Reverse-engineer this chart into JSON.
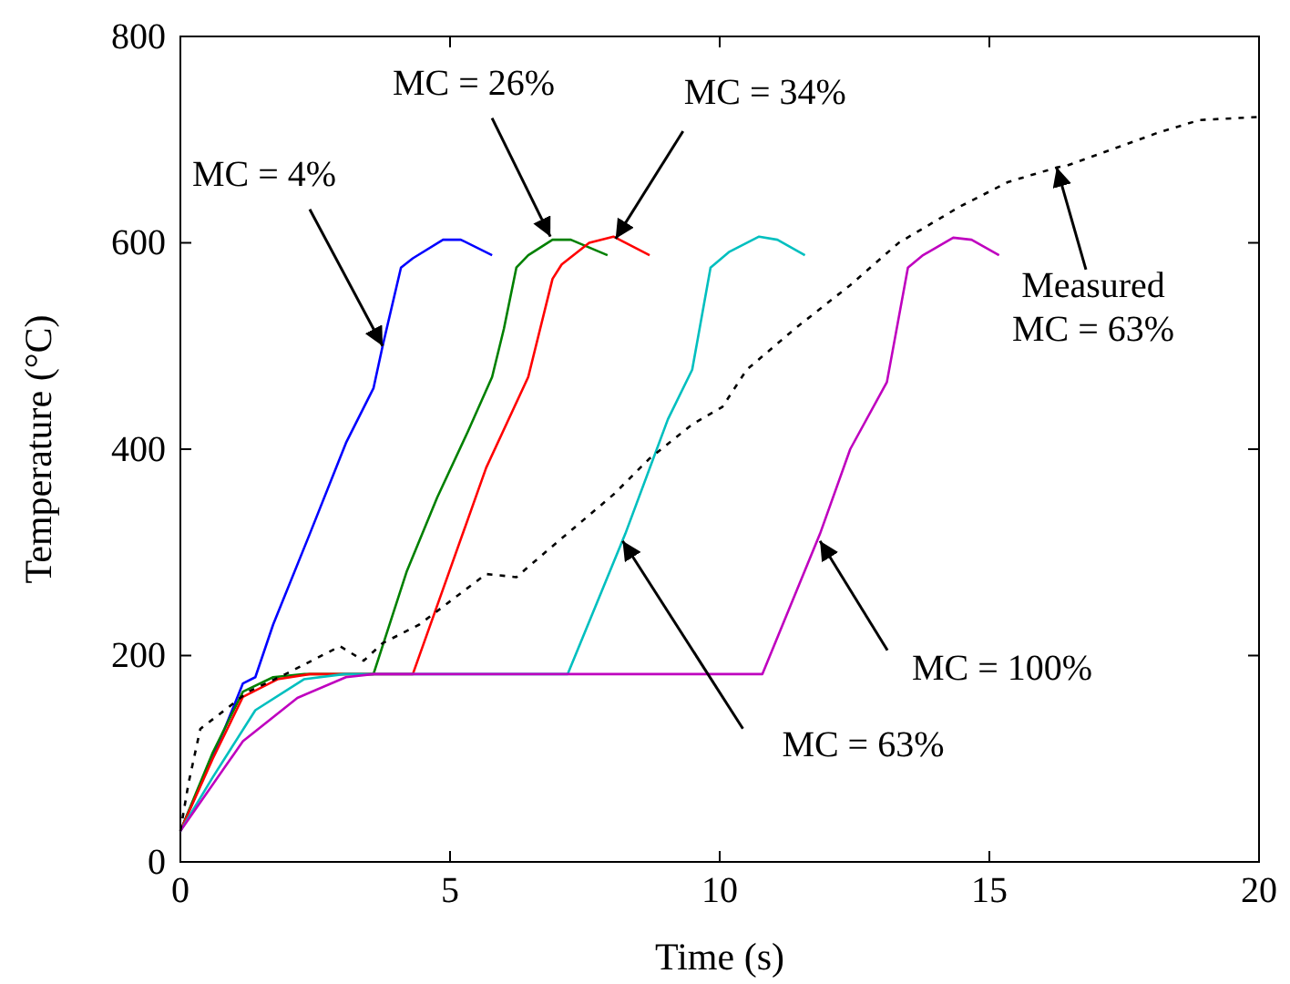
{
  "chart_data": {
    "type": "line",
    "xlabel": "Time (s)",
    "ylabel": "Temperature (°C)",
    "xlim": [
      0,
      20
    ],
    "ylim": [
      0,
      800
    ],
    "xticks": [
      0,
      5,
      10,
      15,
      20
    ],
    "yticks": [
      0,
      200,
      400,
      600,
      800
    ],
    "grid": false,
    "series": [
      {
        "color": "#0000ff",
        "line_style": "solid",
        "x": [
          0,
          0.82,
          1.16,
          1.39,
          1.72,
          2.4,
          3.07,
          3.58,
          3.75,
          4.09,
          4.31,
          4.87,
          5.2,
          5.78
        ],
        "values": [
          30,
          129,
          173,
          179,
          230,
          318,
          406,
          459,
          500,
          576,
          585,
          603,
          603,
          588
        ]
      },
      {
        "color": "#008000",
        "line_style": "solid",
        "x": [
          0,
          0.6,
          1.16,
          1.72,
          2.3,
          3.58,
          4.2,
          4.76,
          5.33,
          5.78,
          6.0,
          6.23,
          6.45,
          6.9,
          7.24,
          7.92
        ],
        "values": [
          30,
          106,
          165,
          179,
          182,
          182,
          282,
          353,
          417,
          470,
          517,
          576,
          588,
          603,
          603,
          588
        ]
      },
      {
        "color": "#ff0000",
        "line_style": "solid",
        "x": [
          0,
          0.6,
          1.16,
          1.8,
          2.4,
          4.31,
          4.99,
          5.67,
          6.45,
          6.9,
          7.07,
          7.58,
          8.03,
          8.7
        ],
        "values": [
          30,
          100,
          160,
          177,
          182,
          182,
          282,
          382,
          470,
          565,
          579,
          600,
          606,
          588
        ]
      },
      {
        "color": "#00bfbf",
        "line_style": "solid",
        "x": [
          0,
          0.6,
          1.39,
          2.29,
          3.04,
          7.18,
          8.25,
          9.04,
          9.49,
          9.83,
          10.17,
          10.73,
          11.07,
          11.58
        ],
        "values": [
          30,
          82,
          147,
          177,
          182,
          182,
          318,
          429,
          477,
          576,
          591,
          606,
          603,
          588
        ]
      },
      {
        "color": "#bf00bf",
        "line_style": "solid",
        "x": [
          0,
          1.16,
          2.17,
          3.07,
          3.58,
          10.79,
          11.86,
          12.42,
          13.1,
          13.49,
          13.77,
          14.33,
          14.67,
          15.18
        ],
        "values": [
          30,
          117,
          159,
          179,
          182,
          182,
          318,
          400,
          465,
          576,
          588,
          605,
          603,
          588
        ]
      },
      {
        "color": "#000000",
        "line_style": "dotted",
        "x": [
          0,
          0.15,
          0.37,
          0.82,
          1.26,
          1.95,
          2.96,
          3.4,
          3.75,
          4.43,
          5.67,
          6.23,
          6.9,
          8.03,
          8.7,
          9.49,
          10.05,
          10.5,
          11.4,
          12.42,
          13.32,
          14.45,
          15.35,
          16.25,
          16.45,
          18.14,
          18.9,
          20
        ],
        "values": [
          30,
          76,
          129,
          147,
          165,
          182,
          209,
          195,
          212,
          230,
          279,
          276,
          306,
          356,
          391,
          424,
          441,
          477,
          517,
          559,
          600,
          635,
          659,
          673,
          675,
          707,
          719,
          722
        ]
      }
    ],
    "annotations": [
      {
        "text": "MC = 4%",
        "x": 3.75,
        "y": 500
      },
      {
        "text": "MC = 26%",
        "x": 6.86,
        "y": 606
      },
      {
        "text": "MC = 34%",
        "x": 8.07,
        "y": 604
      },
      {
        "text": "Measured\nMC = 63%",
        "x": 16.25,
        "y": 673
      },
      {
        "text": "MC = 100%",
        "x": 11.86,
        "y": 311
      },
      {
        "text": "MC = 63%",
        "x": 8.2,
        "y": 311
      }
    ]
  }
}
